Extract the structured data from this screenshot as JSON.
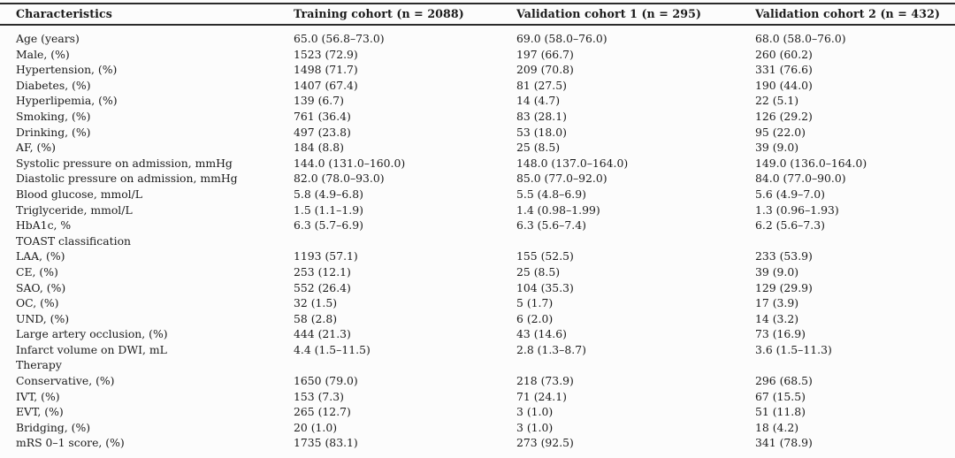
{
  "colors": {
    "text": "#1b1b1b",
    "rule": "#2b2b2b",
    "background": "#fcfcfc"
  },
  "table": {
    "columns": [
      "Characteristics",
      "Training cohort (n = 2088)",
      "Validation cohort 1 (n = 295)",
      "Validation cohort 2 (n = 432)"
    ],
    "rows": [
      {
        "label": "Age (years)",
        "values": [
          "65.0 (56.8–73.0)",
          "69.0 (58.0–76.0)",
          "68.0 (58.0–76.0)"
        ]
      },
      {
        "label": "Male, (%)",
        "values": [
          "1523 (72.9)",
          "197 (66.7)",
          "260 (60.2)"
        ]
      },
      {
        "label": "Hypertension, (%)",
        "values": [
          "1498 (71.7)",
          "209 (70.8)",
          "331 (76.6)"
        ]
      },
      {
        "label": "Diabetes, (%)",
        "values": [
          "1407 (67.4)",
          "81 (27.5)",
          "190 (44.0)"
        ]
      },
      {
        "label": "Hyperlipemia, (%)",
        "values": [
          "139 (6.7)",
          "14 (4.7)",
          "22 (5.1)"
        ]
      },
      {
        "label": "Smoking, (%)",
        "values": [
          "761 (36.4)",
          "83 (28.1)",
          "126 (29.2)"
        ]
      },
      {
        "label": "Drinking, (%)",
        "values": [
          "497 (23.8)",
          "53 (18.0)",
          "95 (22.0)"
        ]
      },
      {
        "label": "AF, (%)",
        "values": [
          "184 (8.8)",
          "25 (8.5)",
          "39 (9.0)"
        ]
      },
      {
        "label": "Systolic pressure on admission, mmHg",
        "values": [
          "144.0 (131.0–160.0)",
          "148.0 (137.0–164.0)",
          "149.0 (136.0–164.0)"
        ]
      },
      {
        "label": "Diastolic pressure on admission, mmHg",
        "values": [
          "82.0 (78.0–93.0)",
          "85.0 (77.0–92.0)",
          "84.0 (77.0–90.0)"
        ]
      },
      {
        "label": "Blood glucose, mmol/L",
        "values": [
          "5.8 (4.9–6.8)",
          "5.5 (4.8–6.9)",
          "5.6 (4.9–7.0)"
        ]
      },
      {
        "label": "Triglyceride, mmol/L",
        "values": [
          "1.5 (1.1–1.9)",
          "1.4 (0.98–1.99)",
          "1.3 (0.96–1.93)"
        ]
      },
      {
        "label": "HbA1c, %",
        "values": [
          "6.3 (5.7–6.9)",
          "6.3 (5.6–7.4)",
          "6.2 (5.6–7.3)"
        ]
      },
      {
        "label": "TOAST classification",
        "values": [
          "",
          "",
          ""
        ]
      },
      {
        "label": "LAA, (%)",
        "values": [
          "1193 (57.1)",
          "155 (52.5)",
          "233 (53.9)"
        ]
      },
      {
        "label": "CE, (%)",
        "values": [
          "253 (12.1)",
          "25 (8.5)",
          "39 (9.0)"
        ]
      },
      {
        "label": "SAO, (%)",
        "values": [
          "552 (26.4)",
          "104 (35.3)",
          "129 (29.9)"
        ]
      },
      {
        "label": "OC, (%)",
        "values": [
          "32 (1.5)",
          "5 (1.7)",
          "17 (3.9)"
        ]
      },
      {
        "label": "UND, (%)",
        "values": [
          "58 (2.8)",
          "6 (2.0)",
          "14 (3.2)"
        ]
      },
      {
        "label": "Large artery occlusion, (%)",
        "values": [
          "444 (21.3)",
          "43 (14.6)",
          "73 (16.9)"
        ]
      },
      {
        "label": "Infarct volume on DWI, mL",
        "values": [
          "4.4 (1.5–11.5)",
          "2.8 (1.3–8.7)",
          "3.6 (1.5–11.3)"
        ]
      },
      {
        "label": "Therapy",
        "values": [
          "",
          "",
          ""
        ]
      },
      {
        "label": "Conservative, (%)",
        "values": [
          "1650 (79.0)",
          "218 (73.9)",
          "296 (68.5)"
        ]
      },
      {
        "label": "IVT, (%)",
        "values": [
          "153 (7.3)",
          "71 (24.1)",
          "67 (15.5)"
        ]
      },
      {
        "label": "EVT, (%)",
        "values": [
          "265 (12.7)",
          "3 (1.0)",
          "51 (11.8)"
        ]
      },
      {
        "label": "Bridging, (%)",
        "values": [
          "20 (1.0)",
          "3 (1.0)",
          "18 (4.2)"
        ]
      },
      {
        "label": "mRS 0–1 score, (%)",
        "values": [
          "1735 (83.1)",
          "273 (92.5)",
          "341 (78.9)"
        ]
      }
    ]
  }
}
